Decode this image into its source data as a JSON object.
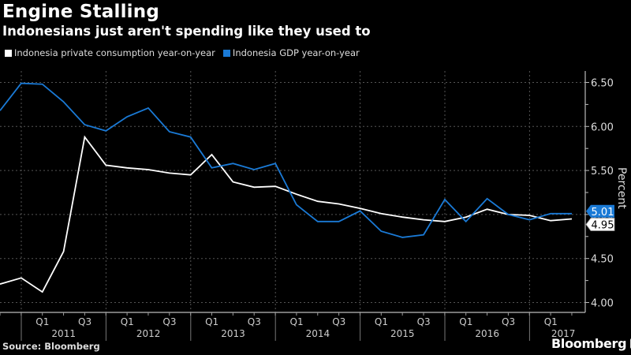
{
  "header": {
    "title": "Engine Stalling",
    "subtitle": "Indonesians just aren't spending like they used to"
  },
  "legend": [
    {
      "label": "Indonesia private consumption year-on-year",
      "color": "#ffffff"
    },
    {
      "label": "Indonesia GDP year-on-year",
      "color": "#1a7ad6"
    }
  ],
  "footer": {
    "source": "Source: Bloomberg",
    "brand": "Bloomberg"
  },
  "chart_data": {
    "type": "line",
    "title": "Engine Stalling",
    "subtitle": "Indonesians just aren't spending like they used to",
    "xlabel": "",
    "ylabel": "Percent",
    "ylim": [
      4.0,
      6.5
    ],
    "yticks": [
      "4.00",
      "4.50",
      "5.00",
      "5.50",
      "6.00",
      "6.50"
    ],
    "grid": true,
    "legend_position": "top-left",
    "x": [
      "Q3 2010",
      "Q4 2010",
      "Q1 2011",
      "Q2 2011",
      "Q3 2011",
      "Q4 2011",
      "Q1 2012",
      "Q2 2012",
      "Q3 2012",
      "Q4 2012",
      "Q1 2013",
      "Q2 2013",
      "Q3 2013",
      "Q4 2013",
      "Q1 2014",
      "Q2 2014",
      "Q3 2014",
      "Q4 2014",
      "Q1 2015",
      "Q2 2015",
      "Q3 2015",
      "Q4 2015",
      "Q1 2016",
      "Q2 2016",
      "Q3 2016",
      "Q4 2016",
      "Q1 2017",
      "Q2 2017"
    ],
    "x_tick_labels": {
      "quarters": [
        "Q1",
        "Q3",
        "Q1",
        "Q3",
        "Q1",
        "Q3",
        "Q1",
        "Q3",
        "Q1",
        "Q3",
        "Q1",
        "Q3",
        "Q1"
      ],
      "years": [
        "2011",
        "2012",
        "2013",
        "2014",
        "2015",
        "2016",
        "2017"
      ]
    },
    "series": [
      {
        "name": "Indonesia private consumption year-on-year",
        "color": "#ffffff",
        "values": [
          4.21,
          4.28,
          4.12,
          4.58,
          5.88,
          5.56,
          5.53,
          5.51,
          5.47,
          5.45,
          5.68,
          5.37,
          5.31,
          5.32,
          5.23,
          5.15,
          5.12,
          5.07,
          5.01,
          4.97,
          4.94,
          4.92,
          4.97,
          5.06,
          5.0,
          4.99,
          4.93,
          4.95
        ],
        "last_value_label": "4.95"
      },
      {
        "name": "Indonesia GDP year-on-year",
        "color": "#1a7ad6",
        "values": [
          6.18,
          6.49,
          6.48,
          6.28,
          6.02,
          5.95,
          6.11,
          6.21,
          5.94,
          5.88,
          5.53,
          5.58,
          5.51,
          5.58,
          5.11,
          4.92,
          4.92,
          5.04,
          4.81,
          4.74,
          4.77,
          5.17,
          4.92,
          5.18,
          5.0,
          4.94,
          5.01,
          5.01
        ],
        "last_value_label": "5.01"
      }
    ]
  }
}
